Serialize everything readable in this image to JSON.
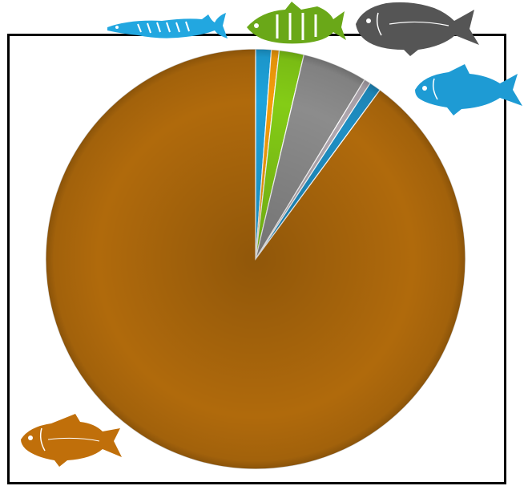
{
  "chart_data": {
    "type": "pie",
    "start_angle_deg": 0,
    "direction": "clockwise",
    "slices": [
      {
        "value": 1.2,
        "color": "#1ea3dc",
        "icon": "pike-fish-icon"
      },
      {
        "value": 0.6,
        "color": "#f59e0b",
        "icon": null
      },
      {
        "value": 1.9,
        "color": "#84cc16",
        "icon": "perch-fish-icon"
      },
      {
        "value": 5.0,
        "color": "#8c8c8c",
        "icon": "bream-fish-icon"
      },
      {
        "value": 0.5,
        "color": "#b0a8b0",
        "icon": null
      },
      {
        "value": 0.9,
        "color": "#1f8fc4",
        "icon": "roach-fish-icon"
      },
      {
        "value": 89.9,
        "color": "#b06a0c",
        "icon": "common-bream-fish-icon"
      }
    ],
    "legend": "none",
    "title": ""
  },
  "icons": {
    "pike": {
      "name": "pike-fish-icon",
      "color": "#22a7e0"
    },
    "perch": {
      "name": "perch-fish-icon",
      "color": "#6aa818"
    },
    "bream": {
      "name": "bream-fish-icon",
      "color": "#555555"
    },
    "roach": {
      "name": "roach-fish-icon",
      "color": "#1e9bd4"
    },
    "common_bream": {
      "name": "common-bream-fish-icon",
      "color": "#c06f0a"
    }
  }
}
